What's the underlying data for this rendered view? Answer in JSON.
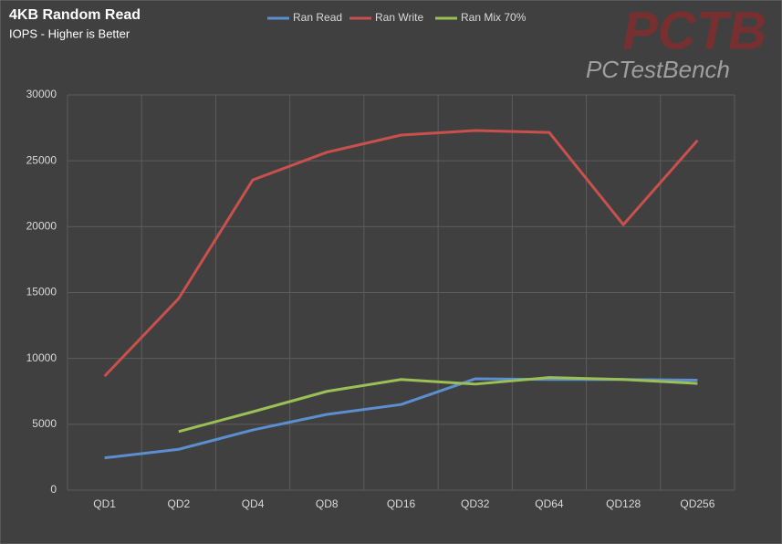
{
  "chart_data": {
    "type": "line",
    "title": "4KB Random Read",
    "subtitle": "IOPS - Higher is Better",
    "watermark": {
      "logo": "PCTB",
      "text": "PCTestBench"
    },
    "categories": [
      "QD1",
      "QD2",
      "QD4",
      "QD8",
      "QD16",
      "QD32",
      "QD64",
      "QD128",
      "QD256"
    ],
    "series": [
      {
        "name": "Ran Read",
        "color": "#5b8fd0",
        "values": [
          2450,
          3100,
          4570,
          5750,
          6500,
          8450,
          8400,
          8400,
          8350
        ]
      },
      {
        "name": "Ran Write",
        "color": "#c9504d",
        "values": [
          8650,
          14550,
          23550,
          25650,
          26950,
          27300,
          27150,
          20150,
          26550
        ]
      },
      {
        "name": "Ran Mix 70%",
        "color": "#9bc055",
        "values": [
          null,
          4450,
          5950,
          7500,
          8400,
          8050,
          8550,
          8400,
          8100
        ]
      }
    ],
    "ylim": [
      0,
      30000
    ],
    "yticks": [
      0,
      5000,
      10000,
      15000,
      20000,
      25000,
      30000
    ],
    "grid": true,
    "legend": "top"
  }
}
